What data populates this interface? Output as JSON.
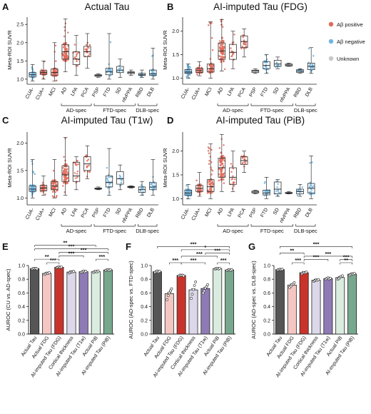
{
  "legend": [
    {
      "label": "Aβ positive",
      "color": "#e06b5a"
    },
    {
      "label": "Aβ negative",
      "color": "#6fb6e3"
    },
    {
      "label": "Unknown",
      "color": "#c8c8c8"
    }
  ],
  "colors": {
    "pos": "#e06b5a",
    "neg": "#6fb6e3",
    "unk": "#c8c8c8"
  },
  "box_panels": [
    {
      "letter": "A",
      "title": "Actual Tau",
      "ylabel": "Meta-ROI SUVR",
      "yticks": [
        "1.0",
        "1.5",
        "2.0",
        "2.5"
      ],
      "ylim": [
        0.9,
        2.7
      ],
      "categories": [
        "CUA-",
        "CUA+",
        "MCI",
        "AD",
        "LPA",
        "PCA",
        "PSP",
        "FTD",
        "SD",
        "nfvPPA",
        "RBD",
        "DLB"
      ],
      "boxes": [
        {
          "min": 0.95,
          "q1": 1.06,
          "med": 1.12,
          "q3": 1.18,
          "max": 1.4,
          "color": "neg",
          "n": 60
        },
        {
          "min": 1.0,
          "q1": 1.13,
          "med": 1.18,
          "q3": 1.23,
          "max": 1.5,
          "color": "pos",
          "n": 40
        },
        {
          "min": 0.95,
          "q1": 1.1,
          "med": 1.18,
          "q3": 1.28,
          "max": 2.0,
          "color": "pos",
          "n": 55
        },
        {
          "min": 1.2,
          "q1": 1.55,
          "med": 1.75,
          "q3": 1.95,
          "max": 2.65,
          "color": "pos",
          "n": 80
        },
        {
          "min": 1.1,
          "q1": 1.4,
          "med": 1.55,
          "q3": 1.75,
          "max": 2.2,
          "color": "pos",
          "n": 15
        },
        {
          "min": 1.3,
          "q1": 1.62,
          "med": 1.75,
          "q3": 1.9,
          "max": 2.25,
          "color": "pos",
          "n": 18
        },
        {
          "min": 1.05,
          "q1": 1.08,
          "med": 1.1,
          "q3": 1.12,
          "max": 1.15,
          "color": "unk",
          "n": 4
        },
        {
          "min": 1.0,
          "q1": 1.12,
          "med": 1.2,
          "q3": 1.3,
          "max": 2.25,
          "color": "neg",
          "n": 20
        },
        {
          "min": 1.05,
          "q1": 1.18,
          "med": 1.25,
          "q3": 1.35,
          "max": 1.55,
          "color": "neg",
          "n": 10
        },
        {
          "min": 1.1,
          "q1": 1.15,
          "med": 1.18,
          "q3": 1.2,
          "max": 1.25,
          "color": "unk",
          "n": 4
        },
        {
          "min": 1.05,
          "q1": 1.1,
          "med": 1.12,
          "q3": 1.16,
          "max": 1.25,
          "color": "neg",
          "n": 10
        },
        {
          "min": 1.0,
          "q1": 1.1,
          "med": 1.15,
          "q3": 1.25,
          "max": 1.85,
          "color": "neg",
          "n": 20
        }
      ],
      "groups": [
        {
          "label": "AD-spec",
          "start": 3,
          "end": 5
        },
        {
          "label": "FTD-spec",
          "start": 6,
          "end": 9
        },
        {
          "label": "DLB-spec",
          "start": 10,
          "end": 11
        }
      ]
    },
    {
      "letter": "B",
      "title": "AI-imputed Tau (FDG)",
      "ylabel": "Meta-ROI SUVR",
      "yticks": [
        "1.0",
        "1.5",
        "2.0"
      ],
      "ylim": [
        0.9,
        2.3
      ],
      "categories": [
        "CUA-",
        "CUA+",
        "MCI",
        "AD",
        "LPA",
        "PCA",
        "PSP",
        "FTD",
        "SD",
        "nfvPPA",
        "RBD",
        "DLB"
      ],
      "boxes": [
        {
          "min": 1.0,
          "q1": 1.1,
          "med": 1.13,
          "q3": 1.18,
          "max": 1.3,
          "color": "neg",
          "n": 60
        },
        {
          "min": 1.05,
          "q1": 1.12,
          "med": 1.16,
          "q3": 1.21,
          "max": 1.35,
          "color": "pos",
          "n": 40
        },
        {
          "min": 1.0,
          "q1": 1.13,
          "med": 1.2,
          "q3": 1.3,
          "max": 2.2,
          "color": "pos",
          "n": 55
        },
        {
          "min": 1.15,
          "q1": 1.4,
          "med": 1.58,
          "q3": 1.75,
          "max": 2.25,
          "color": "pos",
          "n": 80
        },
        {
          "min": 1.2,
          "q1": 1.4,
          "med": 1.55,
          "q3": 1.72,
          "max": 2.0,
          "color": "pos",
          "n": 15
        },
        {
          "min": 1.45,
          "q1": 1.65,
          "med": 1.78,
          "q3": 1.9,
          "max": 2.05,
          "color": "pos",
          "n": 18
        },
        {
          "min": 1.1,
          "q1": 1.12,
          "med": 1.15,
          "q3": 1.17,
          "max": 1.2,
          "color": "unk",
          "n": 4
        },
        {
          "min": 1.1,
          "q1": 1.2,
          "med": 1.27,
          "q3": 1.35,
          "max": 1.5,
          "color": "neg",
          "n": 20
        },
        {
          "min": 1.2,
          "q1": 1.25,
          "med": 1.3,
          "q3": 1.38,
          "max": 1.45,
          "color": "neg",
          "n": 10
        },
        {
          "min": 1.25,
          "q1": 1.26,
          "med": 1.28,
          "q3": 1.3,
          "max": 1.32,
          "color": "unk",
          "n": 4
        },
        {
          "min": 1.1,
          "q1": 1.12,
          "med": 1.15,
          "q3": 1.18,
          "max": 1.2,
          "color": "neg",
          "n": 10
        },
        {
          "min": 1.1,
          "q1": 1.18,
          "med": 1.25,
          "q3": 1.32,
          "max": 1.65,
          "color": "neg",
          "n": 20
        }
      ],
      "groups": [
        {
          "label": "AD-spec",
          "start": 3,
          "end": 5
        },
        {
          "label": "FTD-spec",
          "start": 6,
          "end": 9
        },
        {
          "label": "DLB-spec",
          "start": 10,
          "end": 11
        }
      ]
    },
    {
      "letter": "C",
      "title": "AI-imputed Tau (T1w)",
      "ylabel": "Meta-ROI SUVR",
      "yticks": [
        "1.0",
        "1.5",
        "2.0"
      ],
      "ylim": [
        0.9,
        2.2
      ],
      "categories": [
        "CUA-",
        "CUA+",
        "MCI",
        "AD",
        "LPA",
        "PCA",
        "PSP",
        "FTD",
        "SD",
        "nfvPPA",
        "RBD",
        "DLB"
      ],
      "boxes": [
        {
          "min": 1.0,
          "q1": 1.12,
          "med": 1.16,
          "q3": 1.22,
          "max": 1.7,
          "color": "neg",
          "n": 60
        },
        {
          "min": 1.05,
          "q1": 1.13,
          "med": 1.18,
          "q3": 1.23,
          "max": 1.4,
          "color": "pos",
          "n": 40
        },
        {
          "min": 1.0,
          "q1": 1.15,
          "med": 1.22,
          "q3": 1.3,
          "max": 1.7,
          "color": "pos",
          "n": 55
        },
        {
          "min": 1.05,
          "q1": 1.3,
          "med": 1.42,
          "q3": 1.58,
          "max": 2.1,
          "color": "pos",
          "n": 80
        },
        {
          "min": 1.15,
          "q1": 1.3,
          "med": 1.4,
          "q3": 1.65,
          "max": 1.75,
          "color": "pos",
          "n": 15
        },
        {
          "min": 1.35,
          "q1": 1.5,
          "med": 1.62,
          "q3": 1.75,
          "max": 1.95,
          "color": "pos",
          "n": 18
        },
        {
          "min": 1.15,
          "q1": 1.16,
          "med": 1.17,
          "q3": 1.18,
          "max": 1.2,
          "color": "unk",
          "n": 4
        },
        {
          "min": 1.05,
          "q1": 1.2,
          "med": 1.28,
          "q3": 1.4,
          "max": 1.9,
          "color": "neg",
          "n": 20
        },
        {
          "min": 1.15,
          "q1": 1.25,
          "med": 1.35,
          "q3": 1.48,
          "max": 1.6,
          "color": "neg",
          "n": 10
        },
        {
          "min": 1.18,
          "q1": 1.19,
          "med": 1.2,
          "q3": 1.21,
          "max": 1.22,
          "color": "unk",
          "n": 4
        },
        {
          "min": 1.05,
          "q1": 1.1,
          "med": 1.15,
          "q3": 1.2,
          "max": 1.3,
          "color": "neg",
          "n": 10
        },
        {
          "min": 1.05,
          "q1": 1.15,
          "med": 1.2,
          "q3": 1.28,
          "max": 1.7,
          "color": "neg",
          "n": 20
        }
      ],
      "groups": [
        {
          "label": "AD-spec",
          "start": 3,
          "end": 5
        },
        {
          "label": "FTD-spec",
          "start": 6,
          "end": 9
        },
        {
          "label": "DLB-spec",
          "start": 10,
          "end": 11
        }
      ]
    },
    {
      "letter": "D",
      "title": "AI-imputed Tau (PiB)",
      "ylabel": "Meta-ROI SUVR",
      "yticks": [
        "1.0",
        "1.5",
        "2.0"
      ],
      "ylim": [
        0.9,
        2.4
      ],
      "categories": [
        "CUA-",
        "CUA+",
        "MCI",
        "AD",
        "LPA",
        "PCA",
        "PSP",
        "FTD",
        "SD",
        "nfvPPA",
        "RBD",
        "DLB"
      ],
      "boxes": [
        {
          "min": 1.0,
          "q1": 1.07,
          "med": 1.12,
          "q3": 1.18,
          "max": 1.3,
          "color": "neg",
          "n": 60
        },
        {
          "min": 1.05,
          "q1": 1.15,
          "med": 1.22,
          "q3": 1.28,
          "max": 1.55,
          "color": "pos",
          "n": 40
        },
        {
          "min": 1.0,
          "q1": 1.15,
          "med": 1.25,
          "q3": 1.4,
          "max": 2.15,
          "color": "pos",
          "n": 55
        },
        {
          "min": 1.15,
          "q1": 1.45,
          "med": 1.65,
          "q3": 1.85,
          "max": 2.35,
          "color": "pos",
          "n": 80
        },
        {
          "min": 1.15,
          "q1": 1.3,
          "med": 1.45,
          "q3": 1.65,
          "max": 2.0,
          "color": "pos",
          "n": 15
        },
        {
          "min": 1.55,
          "q1": 1.72,
          "med": 1.8,
          "q3": 1.88,
          "max": 2.0,
          "color": "pos",
          "n": 18
        },
        {
          "min": 1.1,
          "q1": 1.12,
          "med": 1.14,
          "q3": 1.16,
          "max": 1.18,
          "color": "unk",
          "n": 4
        },
        {
          "min": 1.0,
          "q1": 1.08,
          "med": 1.12,
          "q3": 1.18,
          "max": 1.45,
          "color": "neg",
          "n": 20
        },
        {
          "min": 1.05,
          "q1": 1.1,
          "med": 1.2,
          "q3": 1.35,
          "max": 1.4,
          "color": "neg",
          "n": 10
        },
        {
          "min": 1.1,
          "q1": 1.11,
          "med": 1.12,
          "q3": 1.13,
          "max": 1.15,
          "color": "unk",
          "n": 4
        },
        {
          "min": 1.05,
          "q1": 1.1,
          "med": 1.15,
          "q3": 1.2,
          "max": 1.3,
          "color": "neg",
          "n": 10
        },
        {
          "min": 1.0,
          "q1": 1.12,
          "med": 1.22,
          "q3": 1.32,
          "max": 1.9,
          "color": "neg",
          "n": 20
        }
      ],
      "groups": [
        {
          "label": "AD-spec",
          "start": 3,
          "end": 5
        },
        {
          "label": "FTD-spec",
          "start": 6,
          "end": 9
        },
        {
          "label": "DLB-spec",
          "start": 10,
          "end": 11
        }
      ]
    }
  ],
  "bar_panels": [
    {
      "letter": "E",
      "ylabel": "AUROC (CU vs. AD-spec)",
      "yticks": [
        "0.0",
        "0.2",
        "0.4",
        "0.6",
        "0.8",
        "1.0"
      ],
      "ylim": [
        0,
        1.0
      ],
      "categories": [
        "Actual Tau",
        "Actual FDG",
        "AI-imputed Tau (FDG)",
        "Cortical thickness",
        "AI-imputed Tau (T1w)",
        "Actual PiB",
        "AI-imputed Tau (PiB)"
      ],
      "values": [
        0.955,
        0.885,
        0.975,
        0.905,
        0.91,
        0.91,
        0.935
      ],
      "points": [
        [
          0.95,
          0.96,
          0.955,
          0.958,
          0.952
        ],
        [
          0.87,
          0.88,
          0.89,
          0.885,
          0.895
        ],
        [
          0.97,
          0.975,
          0.98,
          0.972,
          0.978
        ],
        [
          0.89,
          0.9,
          0.91,
          0.905,
          0.915
        ],
        [
          0.9,
          0.91,
          0.92,
          0.905,
          0.915
        ],
        [
          0.9,
          0.91,
          0.915,
          0.905,
          0.92
        ],
        [
          0.93,
          0.935,
          0.94,
          0.93,
          0.94
        ]
      ],
      "sig": [
        {
          "a": 0,
          "b": 6,
          "label": "***",
          "level": 5
        },
        {
          "a": 0,
          "b": 5,
          "label": "**",
          "level": 6
        },
        {
          "a": 2,
          "b": 6,
          "label": "***",
          "level": 4
        },
        {
          "a": 2,
          "b": 4,
          "label": "***",
          "level": 3
        },
        {
          "a": 5,
          "b": 6,
          "label": "***",
          "level": 2
        },
        {
          "a": 0,
          "b": 2,
          "label": "**",
          "level": 2
        },
        {
          "a": 1,
          "b": 2,
          "label": "***",
          "level": 1
        }
      ]
    },
    {
      "letter": "F",
      "ylabel": "AUROC (AD-spec vs. FTD-spec)",
      "yticks": [
        "0.0",
        "0.2",
        "0.4",
        "0.6",
        "0.8",
        "1.0"
      ],
      "ylim": [
        0,
        1.0
      ],
      "categories": [
        "Actual Tau",
        "Actual FDG",
        "AI-imputed Tau (FDG)",
        "Cortical thickness",
        "AI-imputed Tau (T1w)",
        "Actual PiB",
        "AI-imputed Tau (PiB)"
      ],
      "values": [
        0.91,
        0.59,
        0.855,
        0.645,
        0.665,
        0.955,
        0.935
      ],
      "points": [
        [
          0.9,
          0.91,
          0.92,
          0.905,
          0.915
        ],
        [
          0.5,
          0.56,
          0.6,
          0.63,
          0.66
        ],
        [
          0.85,
          0.86,
          0.855,
          0.86,
          0.85
        ],
        [
          0.52,
          0.58,
          0.65,
          0.71,
          0.76
        ],
        [
          0.6,
          0.63,
          0.67,
          0.69,
          0.72
        ],
        [
          0.95,
          0.955,
          0.96,
          0.95,
          0.96
        ],
        [
          0.93,
          0.935,
          0.94,
          0.93,
          0.94
        ]
      ],
      "sig": [
        {
          "a": 0,
          "b": 6,
          "label": "***",
          "level": 6
        },
        {
          "a": 2,
          "b": 6,
          "label": "*",
          "level": 5
        },
        {
          "a": 4,
          "b": 6,
          "label": "***",
          "level": 4
        },
        {
          "a": 2,
          "b": 5,
          "label": "***",
          "level": 3
        },
        {
          "a": 1,
          "b": 2,
          "label": "***",
          "level": 1
        },
        {
          "a": 2,
          "b": 4,
          "label": "***",
          "level": 1
        },
        {
          "a": 5,
          "b": 6,
          "label": "***",
          "level": 1
        }
      ]
    },
    {
      "letter": "G",
      "ylabel": "AUROC (AD-spec vs. DLB-spec)",
      "yticks": [
        "0.0",
        "0.2",
        "0.4",
        "0.6",
        "0.8",
        "1.0"
      ],
      "ylim": [
        0,
        1.0
      ],
      "categories": [
        "Actual Tau",
        "Actual FDG",
        "AI-imputed Tau (FDG)",
        "Cortical thickness",
        "AI-imputed Tau (T1w)",
        "Actual PiB",
        "AI-imputed Tau (PiB)"
      ],
      "values": [
        0.94,
        0.715,
        0.895,
        0.785,
        0.81,
        0.825,
        0.875
      ],
      "points": [
        [
          0.935,
          0.94,
          0.945,
          0.94,
          0.945
        ],
        [
          0.68,
          0.7,
          0.72,
          0.73,
          0.75
        ],
        [
          0.88,
          0.89,
          0.9,
          0.895,
          0.905
        ],
        [
          0.77,
          0.78,
          0.79,
          0.785,
          0.795
        ],
        [
          0.8,
          0.81,
          0.82,
          0.805,
          0.815
        ],
        [
          0.8,
          0.81,
          0.83,
          0.84,
          0.85
        ],
        [
          0.86,
          0.87,
          0.88,
          0.875,
          0.885
        ]
      ],
      "sig": [
        {
          "a": 0,
          "b": 6,
          "label": "***",
          "level": 6
        },
        {
          "a": 0,
          "b": 2,
          "label": "**",
          "level": 4
        },
        {
          "a": 2,
          "b": 6,
          "label": "***",
          "level": 3
        },
        {
          "a": 2,
          "b": 4,
          "label": "***",
          "level": 2
        },
        {
          "a": 5,
          "b": 6,
          "label": "***",
          "level": 2
        },
        {
          "a": 1,
          "b": 2,
          "label": "***",
          "level": 1
        },
        {
          "a": 5,
          "b": 6,
          "label": "**",
          "level": 1
        }
      ]
    }
  ],
  "bar_colors": [
    "#555555",
    "#f4c7c3",
    "#c8342b",
    "#dcd8ea",
    "#8e7bb5",
    "#d9ecdf",
    "#77a88d"
  ]
}
